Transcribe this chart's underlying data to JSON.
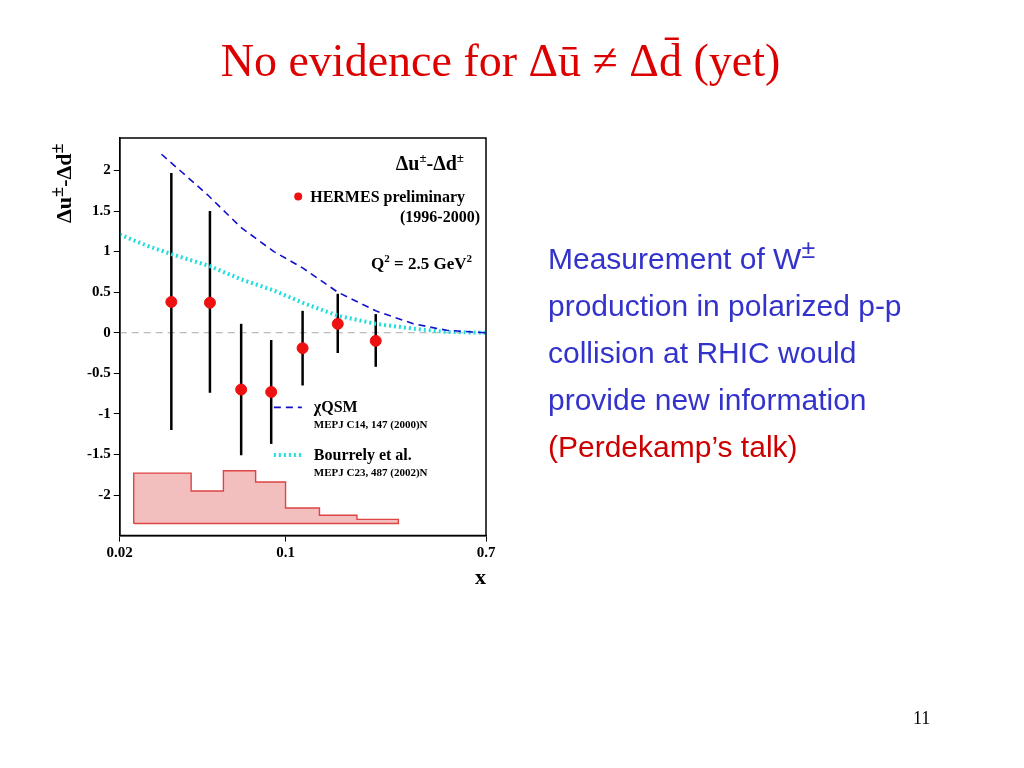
{
  "chart_data": {
    "type": "scatter",
    "title": "No evidence for Δū ≠ Δd̄ (yet)",
    "xlabel": "x",
    "ylabel": "Δu$^{±}$-Δd$^{±}$",
    "log": "x",
    "xlim": [
      0.02,
      0.7
    ],
    "xticks": [
      0.02,
      0.1,
      0.7
    ],
    "ylim": [
      -2.5,
      2.4
    ],
    "yticks": [
      -2,
      -1.5,
      -1,
      -0.5,
      0,
      0.5,
      1,
      1.5,
      2
    ],
    "grid": false,
    "legend": "right",
    "ref_lines": [
      {
        "axis": "y",
        "value": 0,
        "color": "#aaaaaa",
        "line_style": "dashed"
      }
    ],
    "series": [
      {
        "name": "HERMES preliminary (1996-2000)",
        "type": "scatter",
        "color": "#ee1111",
        "marker": "circle",
        "x": [
          0.033,
          0.048,
          0.065,
          0.087,
          0.118,
          0.166,
          0.24
        ],
        "values": [
          0.38,
          0.37,
          -0.7,
          -0.73,
          -0.19,
          0.11,
          -0.1
        ],
        "errors": [
          [
            -1.2,
            1.97
          ],
          [
            -0.74,
            1.5
          ],
          [
            -1.51,
            0.11
          ],
          [
            -1.37,
            -0.09
          ],
          [
            -0.65,
            0.27
          ],
          [
            -0.25,
            0.48
          ],
          [
            -0.42,
            0.23
          ]
        ]
      },
      {
        "name": "χQSM",
        "type": "line",
        "color": "#1111cc",
        "marker": "none",
        "line_style": "dashed",
        "x": [
          0.03,
          0.0362,
          0.0469,
          0.0647,
          0.0893,
          0.118,
          0.166,
          0.24,
          0.346,
          0.478,
          0.7
        ],
        "values": [
          2.2,
          1.99,
          1.7,
          1.3,
          1.0,
          0.8,
          0.5,
          0.27,
          0.11,
          0.03,
          0
        ]
      },
      {
        "name": "Bourrely et al.",
        "type": "line",
        "color": "#22dddd",
        "marker": "none",
        "line_style": "dotted",
        "x": [
          0.02,
          0.0262,
          0.033,
          0.048,
          0.0647,
          0.0893,
          0.118,
          0.166,
          0.24,
          0.346,
          0.478,
          0.7
        ],
        "values": [
          1.21,
          1.07,
          0.97,
          0.82,
          0.66,
          0.52,
          0.37,
          0.21,
          0.11,
          0.05,
          0.01,
          0
        ]
      },
      {
        "type": "area",
        "color": "#dd4444",
        "marker": "none",
        "x": [
          0.0229,
          0.0229,
          0.04,
          0.04,
          0.0547,
          0.0547,
          0.0748,
          0.0748,
          0.1,
          0.1,
          0.139,
          0.139,
          0.2,
          0.2,
          0.299,
          0.299,
          0.0229
        ],
        "values": [
          -2.35,
          -1.73,
          -1.73,
          -1.95,
          -1.95,
          -1.7,
          -1.7,
          -1.84,
          -1.84,
          -2.16,
          -2.16,
          -2.25,
          -2.25,
          -2.3,
          -2.3,
          -2.35,
          -2.35
        ]
      }
    ],
    "annotations": [
      "Δu$^{±}$-Δd$^{±}$",
      "Q$^{2}$ = 2.5 GeV$^{2}$",
      "MEPJ C14, 147 (2000)N",
      "MEPJ C23, 487 (2002)N",
      "Measurement of W$^{±}$ production in polarized p-p collision at RHIC would provide new information",
      "(Perdekamp’s talk)",
      "11"
    ]
  }
}
